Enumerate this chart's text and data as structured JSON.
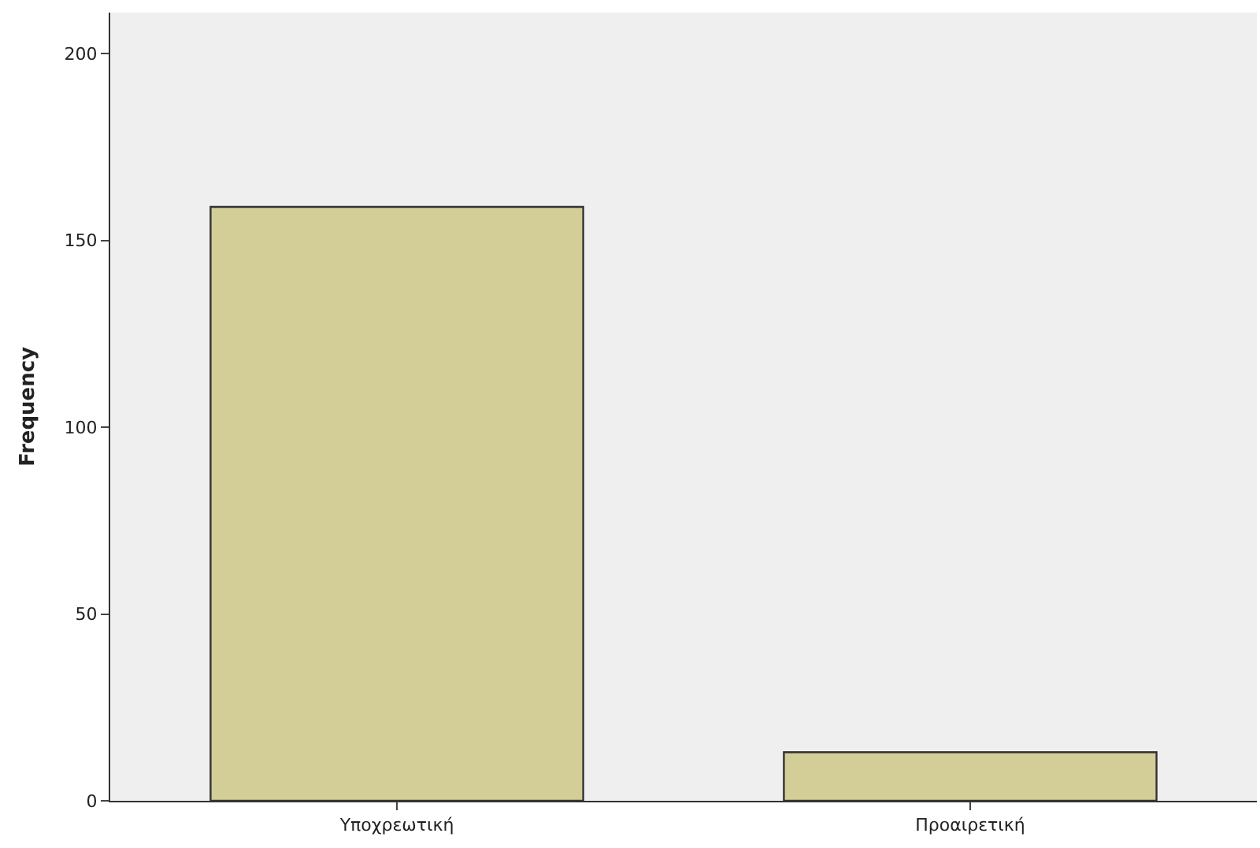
{
  "chart_data": {
    "type": "bar",
    "ylabel": "Frequency",
    "categories": [
      "Υποχρεωτική",
      "Προαιρετική"
    ],
    "values": [
      159,
      13
    ],
    "color": "#d3ce97",
    "ylim": [
      0,
      211
    ],
    "yticks": [
      0,
      50,
      100,
      150,
      200
    ],
    "grid": false
  }
}
